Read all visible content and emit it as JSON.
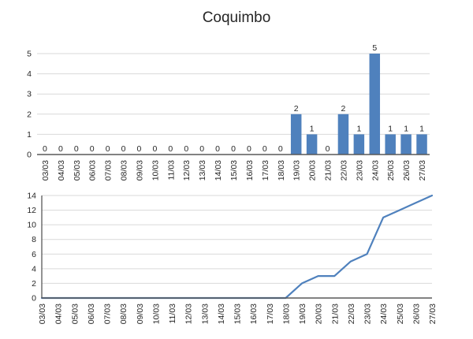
{
  "title": "Coquimbo",
  "colors": {
    "series": "#4F81BD",
    "gridline": "#D9D9D9",
    "axis": "#595959",
    "text": "#262626"
  },
  "chart_data": [
    {
      "type": "bar",
      "title": "Coquimbo",
      "categories": [
        "03/03",
        "04/03",
        "05/03",
        "06/03",
        "07/03",
        "08/03",
        "09/03",
        "10/03",
        "11/03",
        "12/03",
        "13/03",
        "14/03",
        "15/03",
        "16/03",
        "17/03",
        "18/03",
        "19/03",
        "20/03",
        "21/03",
        "22/03",
        "23/03",
        "24/03",
        "25/03",
        "26/03",
        "27/03"
      ],
      "values": [
        0,
        0,
        0,
        0,
        0,
        0,
        0,
        0,
        0,
        0,
        0,
        0,
        0,
        0,
        0,
        0,
        2,
        1,
        0,
        2,
        1,
        5,
        1,
        1,
        1
      ],
      "xlabel": "",
      "ylabel": "",
      "ylim": [
        0,
        5
      ],
      "yticks": [
        0,
        1,
        2,
        3,
        4,
        5
      ],
      "grid": true,
      "data_labels": true,
      "legend": "none"
    },
    {
      "type": "line",
      "title": "",
      "categories": [
        "03/03",
        "04/03",
        "05/03",
        "06/03",
        "07/03",
        "08/03",
        "09/03",
        "10/03",
        "11/03",
        "12/03",
        "13/03",
        "14/03",
        "15/03",
        "16/03",
        "17/03",
        "18/03",
        "19/03",
        "20/03",
        "21/03",
        "22/03",
        "23/03",
        "24/03",
        "25/03",
        "26/03",
        "27/03"
      ],
      "values": [
        0,
        0,
        0,
        0,
        0,
        0,
        0,
        0,
        0,
        0,
        0,
        0,
        0,
        0,
        0,
        0,
        2,
        3,
        3,
        5,
        6,
        11,
        12,
        13,
        14
      ],
      "xlabel": "",
      "ylabel": "",
      "ylim": [
        0,
        14
      ],
      "yticks": [
        0,
        2,
        4,
        6,
        8,
        10,
        12,
        14
      ],
      "grid": true,
      "data_labels": false,
      "legend": "none"
    }
  ]
}
